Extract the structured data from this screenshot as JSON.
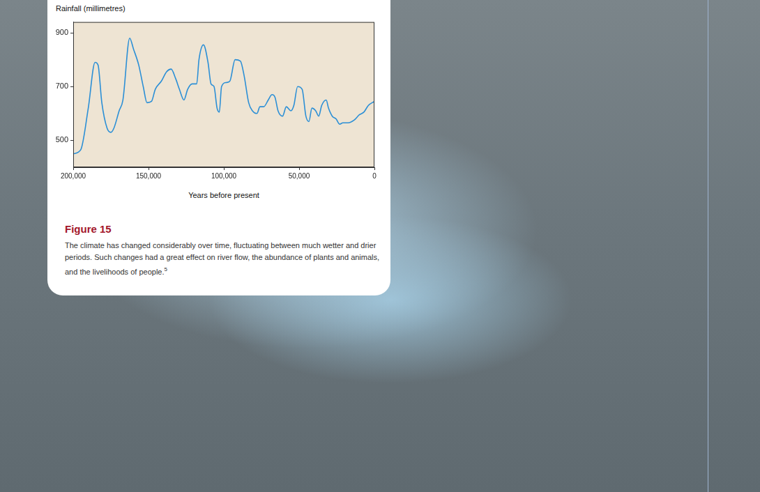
{
  "chart_data": {
    "type": "line",
    "title": "Figure 15",
    "caption": "The climate has changed considerably over time, fluctuating between much wetter and drier periods. Such changes had a great effect on river flow, the abundance of plants and animals, and the livelihoods of people.",
    "caption_ref": "5",
    "x_label": "Years before present",
    "y_label": "Rainfall (millimetres)",
    "x": [
      200000,
      195000,
      190000,
      185500,
      183500,
      181000,
      177500,
      175000,
      173000,
      169500,
      167000,
      162500,
      160000,
      156500,
      153500,
      151000,
      148000,
      145500,
      141500,
      138000,
      135000,
      132000,
      129500,
      126500,
      124000,
      121000,
      118000,
      116500,
      113500,
      110500,
      108500,
      106500,
      104500,
      103000,
      101500,
      98500,
      96000,
      92500,
      89000,
      86500,
      83500,
      81000,
      78000,
      76000,
      73500,
      70500,
      68000,
      66000,
      64000,
      61000,
      58500,
      55500,
      53500,
      51000,
      48000,
      45500,
      43500,
      41500,
      39000,
      37000,
      35000,
      32000,
      30500,
      28000,
      25500,
      23000,
      21000,
      17500,
      13500,
      10000,
      7000,
      4000,
      0
    ],
    "values": [
      450,
      465,
      620,
      790,
      780,
      640,
      545,
      530,
      545,
      610,
      650,
      880,
      840,
      780,
      700,
      640,
      645,
      690,
      720,
      755,
      765,
      730,
      690,
      650,
      690,
      710,
      710,
      800,
      855,
      790,
      710,
      700,
      620,
      605,
      700,
      715,
      720,
      800,
      795,
      740,
      640,
      610,
      600,
      625,
      625,
      650,
      670,
      660,
      610,
      590,
      625,
      610,
      630,
      700,
      690,
      590,
      570,
      620,
      610,
      590,
      630,
      650,
      620,
      590,
      580,
      560,
      565,
      565,
      575,
      595,
      605,
      630,
      645
    ],
    "color": "#2b8fd6",
    "marker": "none",
    "xlim": [
      200000,
      0
    ],
    "xticks": [
      {
        "value": 200000,
        "label": "200,000"
      },
      {
        "value": 150000,
        "label": "150,000"
      },
      {
        "value": 100000,
        "label": "100,000"
      },
      {
        "value": 50000,
        "label": "50,000"
      },
      0
    ],
    "ylim": [
      400,
      940
    ],
    "yticks": [
      500,
      700,
      900
    ],
    "grid": false
  }
}
